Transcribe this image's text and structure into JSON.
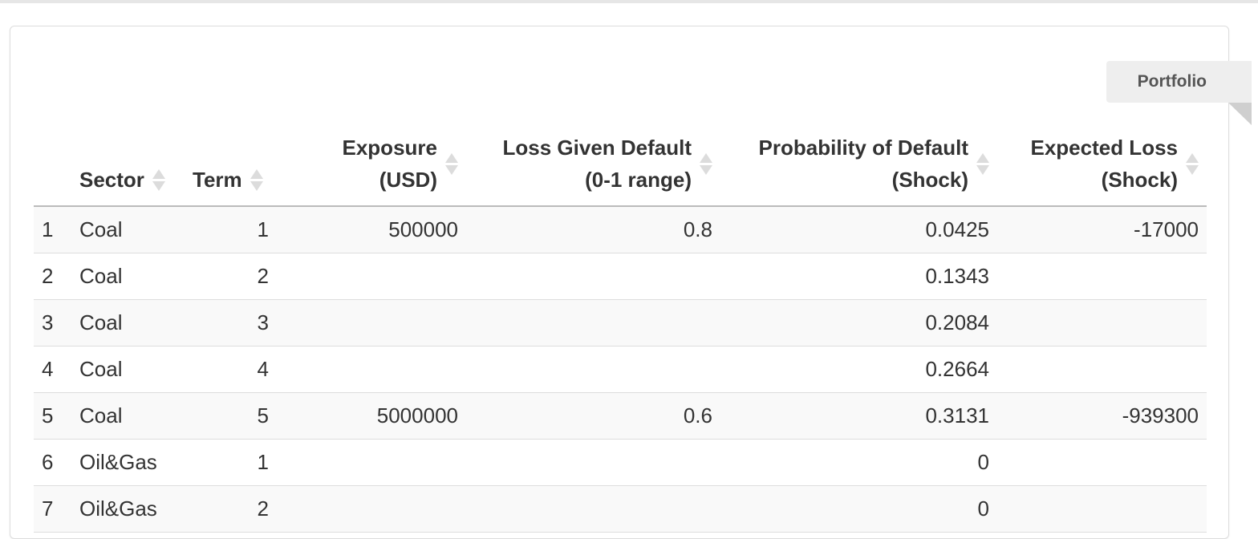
{
  "portfolio_tab": {
    "label": "Portfolio"
  },
  "table": {
    "columns": [
      {
        "key": "idx",
        "line1": "",
        "line2": ""
      },
      {
        "key": "sector",
        "line1": "Sector",
        "line2": ""
      },
      {
        "key": "term",
        "line1": "Term",
        "line2": ""
      },
      {
        "key": "exposure",
        "line1": "Exposure",
        "line2": "(USD)"
      },
      {
        "key": "lgd",
        "line1": "Loss Given Default",
        "line2": "(0-1 range)"
      },
      {
        "key": "pd",
        "line1": "Probability of Default",
        "line2": "(Shock)"
      },
      {
        "key": "el",
        "line1": "Expected Loss",
        "line2": "(Shock)"
      }
    ],
    "rows": [
      [
        "1",
        "Coal",
        "1",
        "500000",
        "0.8",
        "0.0425",
        "-17000"
      ],
      [
        "2",
        "Coal",
        "2",
        "",
        "",
        "0.1343",
        ""
      ],
      [
        "3",
        "Coal",
        "3",
        "",
        "",
        "0.2084",
        ""
      ],
      [
        "4",
        "Coal",
        "4",
        "",
        "",
        "0.2664",
        ""
      ],
      [
        "5",
        "Coal",
        "5",
        "5000000",
        "0.6",
        "0.3131",
        "-939300"
      ],
      [
        "6",
        "Oil&Gas",
        "1",
        "",
        "",
        "0",
        ""
      ],
      [
        "7",
        "Oil&Gas",
        "2",
        "",
        "",
        "0",
        ""
      ]
    ]
  },
  "colors": {
    "header_border": "#bbbbbb",
    "row_border": "#dddddd",
    "row_stripe": "#f9f9f9",
    "sort_arrow": "#dcdcdc",
    "ribbon_bg": "#eeeeee"
  }
}
